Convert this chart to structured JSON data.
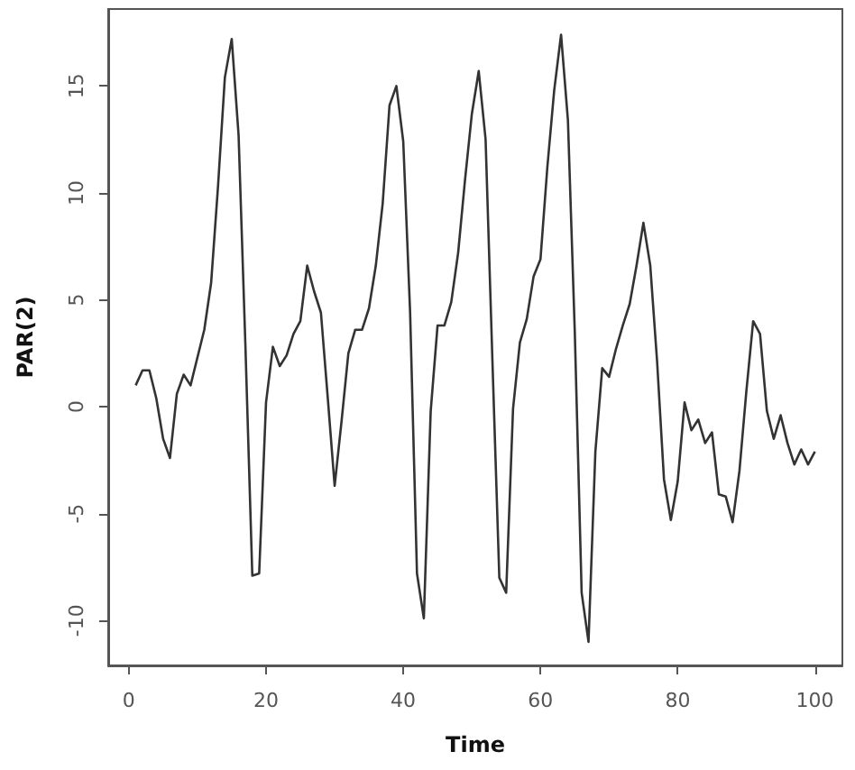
{
  "chart_data": {
    "type": "line",
    "xlabel": "Time",
    "ylabel": "PAR(2)",
    "x": [
      1,
      2,
      3,
      4,
      5,
      6,
      7,
      8,
      9,
      10,
      11,
      12,
      13,
      14,
      15,
      16,
      17,
      18,
      19,
      20,
      21,
      22,
      23,
      24,
      25,
      26,
      27,
      28,
      29,
      30,
      31,
      32,
      33,
      34,
      35,
      36,
      37,
      38,
      39,
      40,
      41,
      42,
      43,
      44,
      45,
      46,
      47,
      48,
      49,
      50,
      51,
      52,
      53,
      54,
      55,
      56,
      57,
      58,
      59,
      60,
      61,
      62,
      63,
      64,
      65,
      66,
      67,
      68,
      69,
      70,
      71,
      72,
      73,
      74,
      75,
      76,
      77,
      78,
      79,
      80,
      81,
      82,
      83,
      84,
      85,
      86,
      87,
      88,
      89,
      90,
      91,
      92,
      93,
      94,
      95,
      96,
      97,
      98,
      99,
      100
    ],
    "series": [
      {
        "color": "#333333",
        "values": [
          1.0,
          1.7,
          1.7,
          0.4,
          -1.5,
          -2.4,
          0.6,
          1.5,
          1.0,
          2.3,
          3.6,
          5.8,
          10.3,
          15.4,
          17.2,
          12.7,
          2.8,
          -7.9,
          -7.8,
          0.2,
          2.8,
          1.9,
          2.4,
          3.4,
          4.0,
          6.6,
          5.4,
          4.4,
          0.4,
          -3.7,
          -0.7,
          2.5,
          3.6,
          3.6,
          4.6,
          6.6,
          9.5,
          14.1,
          15.0,
          12.4,
          4.4,
          -7.8,
          -9.9,
          -0.2,
          3.8,
          3.8,
          4.9,
          7.2,
          10.6,
          13.7,
          15.7,
          12.5,
          2.1,
          -8.0,
          -8.7,
          -0.1,
          3.0,
          4.1,
          6.1,
          6.9,
          11.2,
          14.8,
          17.4,
          13.4,
          3.5,
          -8.7,
          -11.0,
          -2.1,
          1.8,
          1.4,
          2.7,
          3.8,
          4.8,
          6.6,
          8.6,
          6.6,
          2.1,
          -3.4,
          -5.3,
          -3.5,
          0.2,
          -1.1,
          -0.6,
          -1.7,
          -1.2,
          -4.1,
          -4.2,
          -5.4,
          -3.0,
          0.7,
          4.0,
          3.4,
          -0.2,
          -1.5,
          -0.4,
          -1.7,
          -2.7,
          -2.0,
          -2.7,
          -2.1
        ]
      }
    ],
    "xlim": [
      -3,
      104
    ],
    "xticks": [
      0,
      20,
      40,
      60,
      80,
      100
    ],
    "ylim": [
      -12.1,
      18.6
    ],
    "yticks": [
      -10,
      -5,
      0,
      5,
      10,
      15
    ],
    "grid": false,
    "marker": "none",
    "line_style": "solid"
  }
}
